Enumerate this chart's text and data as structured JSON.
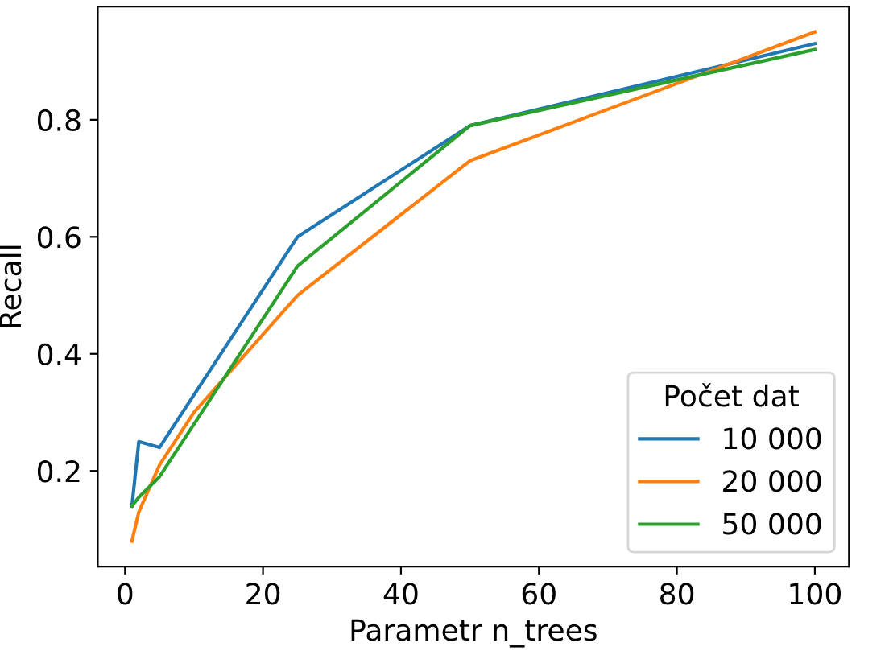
{
  "chart_data": {
    "type": "line",
    "xlabel": "Parametr n_trees",
    "ylabel": "Recall",
    "legend_title": "Počet dat",
    "legend": "bottom right",
    "grid": false,
    "x": [
      1,
      2,
      5,
      10,
      25,
      50,
      100
    ],
    "series": [
      {
        "name": "10 000",
        "color": "#1f77b4",
        "values": [
          0.14,
          0.25,
          0.24,
          0.33,
          0.6,
          0.79,
          0.93
        ]
      },
      {
        "name": "20 000",
        "color": "#ff7f0e",
        "values": [
          0.08,
          0.13,
          0.21,
          0.3,
          0.5,
          0.73,
          0.95
        ]
      },
      {
        "name": "50 000",
        "color": "#2ca02c",
        "values": [
          0.14,
          0.155,
          0.19,
          0.28,
          0.55,
          0.79,
          0.92
        ]
      }
    ],
    "xlim": [
      -3.95,
      104.95
    ],
    "ylim": [
      0.0365,
      0.9935
    ],
    "xticks": [
      0,
      20,
      40,
      60,
      80,
      100
    ],
    "yticks": [
      {
        "value": 0.2,
        "label": "0.2"
      },
      {
        "value": 0.4,
        "label": "0.4"
      },
      {
        "value": 0.6,
        "label": "0.6"
      },
      {
        "value": 0.8,
        "label": "0.8"
      }
    ]
  }
}
